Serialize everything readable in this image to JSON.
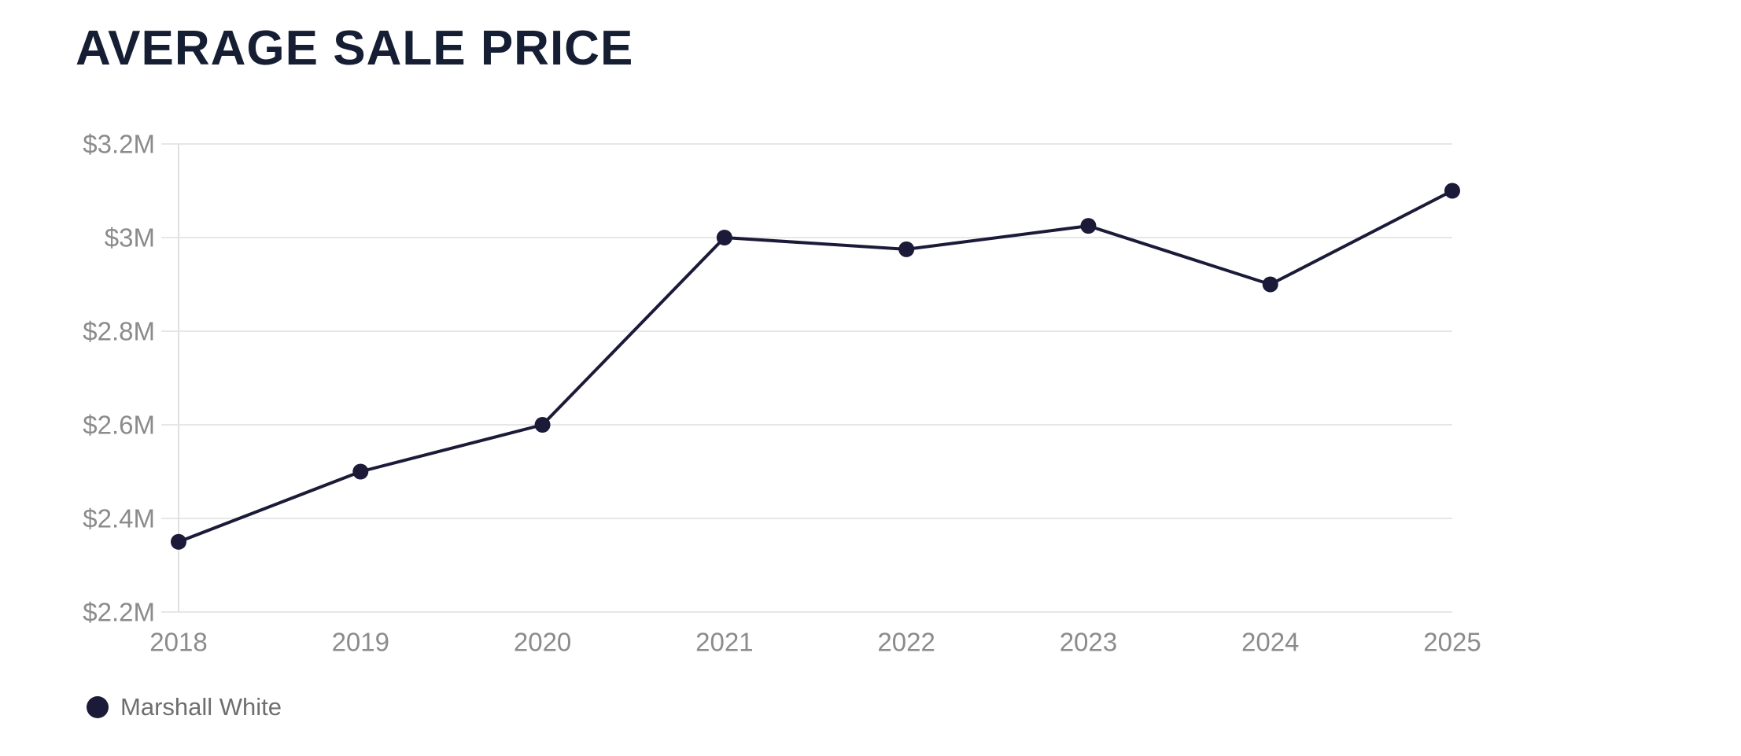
{
  "header": {
    "title": "AVERAGE SALE PRICE"
  },
  "legend": {
    "items": [
      {
        "label": "Marshall White",
        "color": "#1b1b39"
      }
    ]
  },
  "chart_data": {
    "type": "line",
    "title": "AVERAGE SALE PRICE",
    "categories": [
      "2018",
      "2019",
      "2020",
      "2021",
      "2022",
      "2023",
      "2024",
      "2025"
    ],
    "series": [
      {
        "name": "Marshall White",
        "values": [
          2.35,
          2.5,
          2.6,
          3.0,
          2.975,
          3.025,
          2.9,
          3.1
        ],
        "unit": "million USD",
        "color": "#1b1b39"
      }
    ],
    "xlabel": "",
    "ylabel": "",
    "ylim": [
      2.2,
      3.2
    ],
    "y_ticks": [
      {
        "value": 2.2,
        "label": "$2.2M"
      },
      {
        "value": 2.4,
        "label": "$2.4M"
      },
      {
        "value": 2.6,
        "label": "$2.6M"
      },
      {
        "value": 2.8,
        "label": "$2.8M"
      },
      {
        "value": 3.0,
        "label": "$3M"
      },
      {
        "value": 3.2,
        "label": "$3.2M"
      }
    ],
    "grid": "horizontal",
    "legend_position": "bottom-left",
    "colors": {
      "line": "#1b1b39",
      "marker": "#1b1b39",
      "gridline": "#e7e7e7",
      "axis_line": "#e0e0e0",
      "tick_label": "#8b8b8b",
      "title": "#151e32",
      "legend_text": "#6e6e6e",
      "background": "#ffffff"
    }
  }
}
